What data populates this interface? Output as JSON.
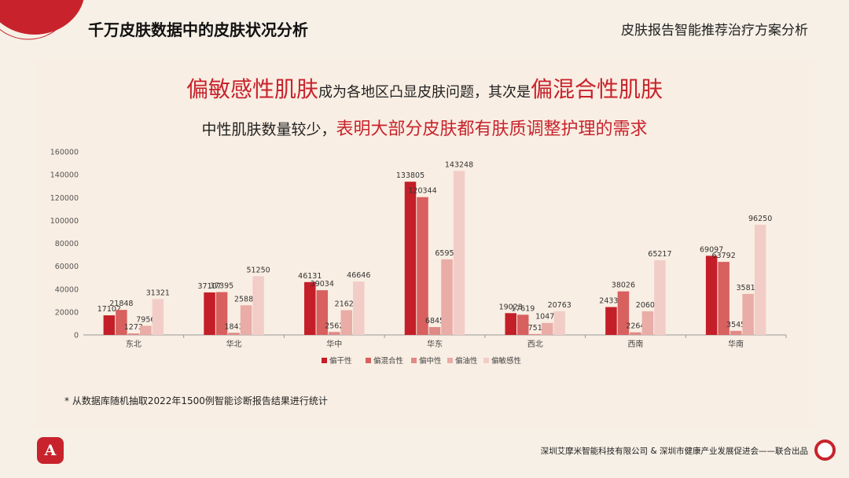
{
  "header": {
    "title": "千万皮肤数据中的皮肤状况分析",
    "right_title": "皮肤报告智能推荐治疗方案分析"
  },
  "headline1": {
    "part1": "偏敏感性肌肤",
    "part2": "成为各地区凸显皮肤问题，其次是",
    "part3": "偏混合性肌肤"
  },
  "headline2": {
    "part1": "中性肌肤数量较少，",
    "part2": "表明大部分皮肤都有肤质调整护理的需求"
  },
  "chart_data": {
    "type": "bar",
    "categories": [
      "东北",
      "华北",
      "华中",
      "华东",
      "西北",
      "西南",
      "华南"
    ],
    "series": [
      {
        "name": "偏干性",
        "color": "#c41e28",
        "values": [
          17102,
          37107,
          46131,
          133805,
          19023,
          24334,
          69097
        ]
      },
      {
        "name": "偏混合性",
        "color": "#d8605f",
        "values": [
          21848,
          37395,
          39034,
          120344,
          17619,
          38026,
          63792
        ]
      },
      {
        "name": "偏中性",
        "color": "#e08a86",
        "values": [
          1273,
          1843,
          2562,
          6845,
          751,
          2264,
          3545
        ]
      },
      {
        "name": "偏油性",
        "color": "#e9aca6",
        "values": [
          7956,
          25880,
          21620,
          65959,
          10473,
          20609,
          35819
        ]
      },
      {
        "name": "偏敏感性",
        "color": "#f2cdc8",
        "values": [
          31321,
          51250,
          46646,
          143248,
          20763,
          65217,
          96250
        ]
      }
    ],
    "ylim": [
      0,
      160000
    ],
    "yticks": [
      0,
      20000,
      40000,
      60000,
      80000,
      100000,
      120000,
      140000,
      160000
    ],
    "legend_position": "bottom-center",
    "grid": false
  },
  "footnote": "* 从数据库随机抽取2022年1500例智能诊断报告结果进行统计",
  "footer": {
    "credit": "深圳艾摩米智能科技有限公司 & 深圳市健康产业发展促进会——联合出品",
    "logo_text": "A"
  },
  "colors": {
    "accent": "#c8232c",
    "background": "#f6f0e6",
    "panel": "#f9eee3"
  }
}
